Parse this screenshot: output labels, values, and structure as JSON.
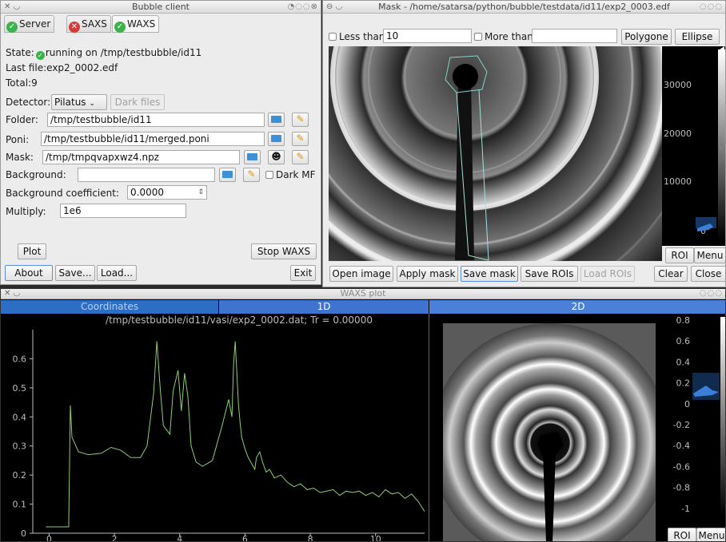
{
  "bubble": {
    "title": "Bubble client",
    "tabs": [
      {
        "label": "Server",
        "status": "ok"
      },
      {
        "label": "SAXS",
        "status": "error"
      },
      {
        "label": "WAXS",
        "status": "ok"
      }
    ],
    "state_label": "State:",
    "state_value": "running on /tmp/testbubble/id11",
    "lastfile_label": "Last file:",
    "lastfile_value": "exp2_0002.edf",
    "total_label": "Total:",
    "total_value": "9",
    "detector_label": "Detector:",
    "detector_value": "Pilatus",
    "dark_files_label": "Dark files",
    "folder_label": "Folder:",
    "folder_value": "/tmp/testbubble/id11",
    "poni_label": "Poni:",
    "poni_value": "/tmp/testbubble/id11/merged.poni",
    "mask_label": "Mask:",
    "mask_value": "/tmp/tmpqvapxwz4.npz",
    "background_label": "Background:",
    "background_value": "",
    "dark_mf_label": "Dark MF",
    "bgcoef_label": "Background coefficient:",
    "bgcoef_value": "0.0000",
    "multiply_label": "Multiply:",
    "multiply_value": "1e6",
    "plot_label": "Plot",
    "stop_label": "Stop WAXS",
    "about_label": "About",
    "save_label": "Save...",
    "load_label": "Load...",
    "exit_label": "Exit"
  },
  "mask": {
    "title": "Mask - /home/satarsa/python/bubble/testdata/id11/exp2_0003.edf",
    "less_than_label": "Less than",
    "less_than_value": "10",
    "more_than_label": "More than",
    "more_than_value": "",
    "polygone_label": "Polygone",
    "ellipse_label": "Ellipse",
    "scale_ticks": [
      "30000",
      "20000",
      "10000",
      "0"
    ],
    "roi_label": "ROI",
    "menu_label": "Menu",
    "open_image_label": "Open image",
    "apply_mask_label": "Apply mask",
    "save_mask_label": "Save mask",
    "save_rois_label": "Save ROIs",
    "load_rois_label": "Load ROIs",
    "clear_label": "Clear",
    "close_label": "Close"
  },
  "waxs": {
    "title": "WAXS plot",
    "tab_coordinates": "Coordinates",
    "tab_1d": "1D",
    "tab_2d": "2D",
    "plot_title": "/tmp/testbubble/id11/vasi/exp2_0002.dat; Tr = 0.00000",
    "scale_ticks": [
      "0.8",
      "0.6",
      "0.4",
      "0.2",
      "0",
      "-0.2",
      "-0.4",
      "-0.6",
      "-0.8",
      "-1"
    ],
    "roi_label": "ROI",
    "menu_label": "Menu"
  },
  "chart_data": {
    "type": "line",
    "title": "/tmp/testbubble/id11/vasi/exp2_0002.dat; Tr = 0.00000",
    "xlim": [
      -0.5,
      11.5
    ],
    "ylim": [
      0,
      0.7
    ],
    "xticks": [
      0,
      2,
      4,
      6,
      8,
      10
    ],
    "yticks": [
      0,
      0.1,
      0.2,
      0.3,
      0.4,
      0.5,
      0.6
    ],
    "line_color": "#8fcf6f",
    "x": [
      -0.1,
      0.6,
      0.65,
      0.7,
      0.9,
      1.2,
      1.6,
      1.9,
      2.2,
      2.5,
      2.8,
      3.0,
      3.2,
      3.3,
      3.4,
      3.5,
      3.7,
      3.8,
      3.95,
      4.05,
      4.15,
      4.25,
      4.35,
      4.5,
      4.7,
      5.0,
      5.3,
      5.5,
      5.6,
      5.65,
      5.7,
      5.8,
      5.85,
      5.9,
      6.0,
      6.1,
      6.2,
      6.3,
      6.35,
      6.45,
      6.55,
      6.65,
      6.75,
      6.9,
      7.1,
      7.3,
      7.5,
      7.7,
      7.9,
      8.1,
      8.3,
      8.5,
      8.7,
      8.9,
      9.1,
      9.3,
      9.5,
      9.7,
      9.9,
      10.1,
      10.3,
      10.5,
      10.7,
      10.9,
      11.1,
      11.3,
      11.5
    ],
    "y": [
      0.022,
      0.022,
      0.44,
      0.33,
      0.28,
      0.27,
      0.275,
      0.295,
      0.285,
      0.26,
      0.26,
      0.3,
      0.48,
      0.66,
      0.5,
      0.37,
      0.34,
      0.49,
      0.56,
      0.42,
      0.55,
      0.47,
      0.3,
      0.245,
      0.23,
      0.25,
      0.37,
      0.46,
      0.4,
      0.58,
      0.66,
      0.44,
      0.38,
      0.33,
      0.29,
      0.26,
      0.24,
      0.22,
      0.26,
      0.28,
      0.24,
      0.21,
      0.22,
      0.19,
      0.2,
      0.175,
      0.16,
      0.17,
      0.15,
      0.155,
      0.14,
      0.145,
      0.15,
      0.13,
      0.145,
      0.14,
      0.145,
      0.13,
      0.14,
      0.125,
      0.15,
      0.135,
      0.14,
      0.12,
      0.135,
      0.11,
      0.075
    ]
  }
}
